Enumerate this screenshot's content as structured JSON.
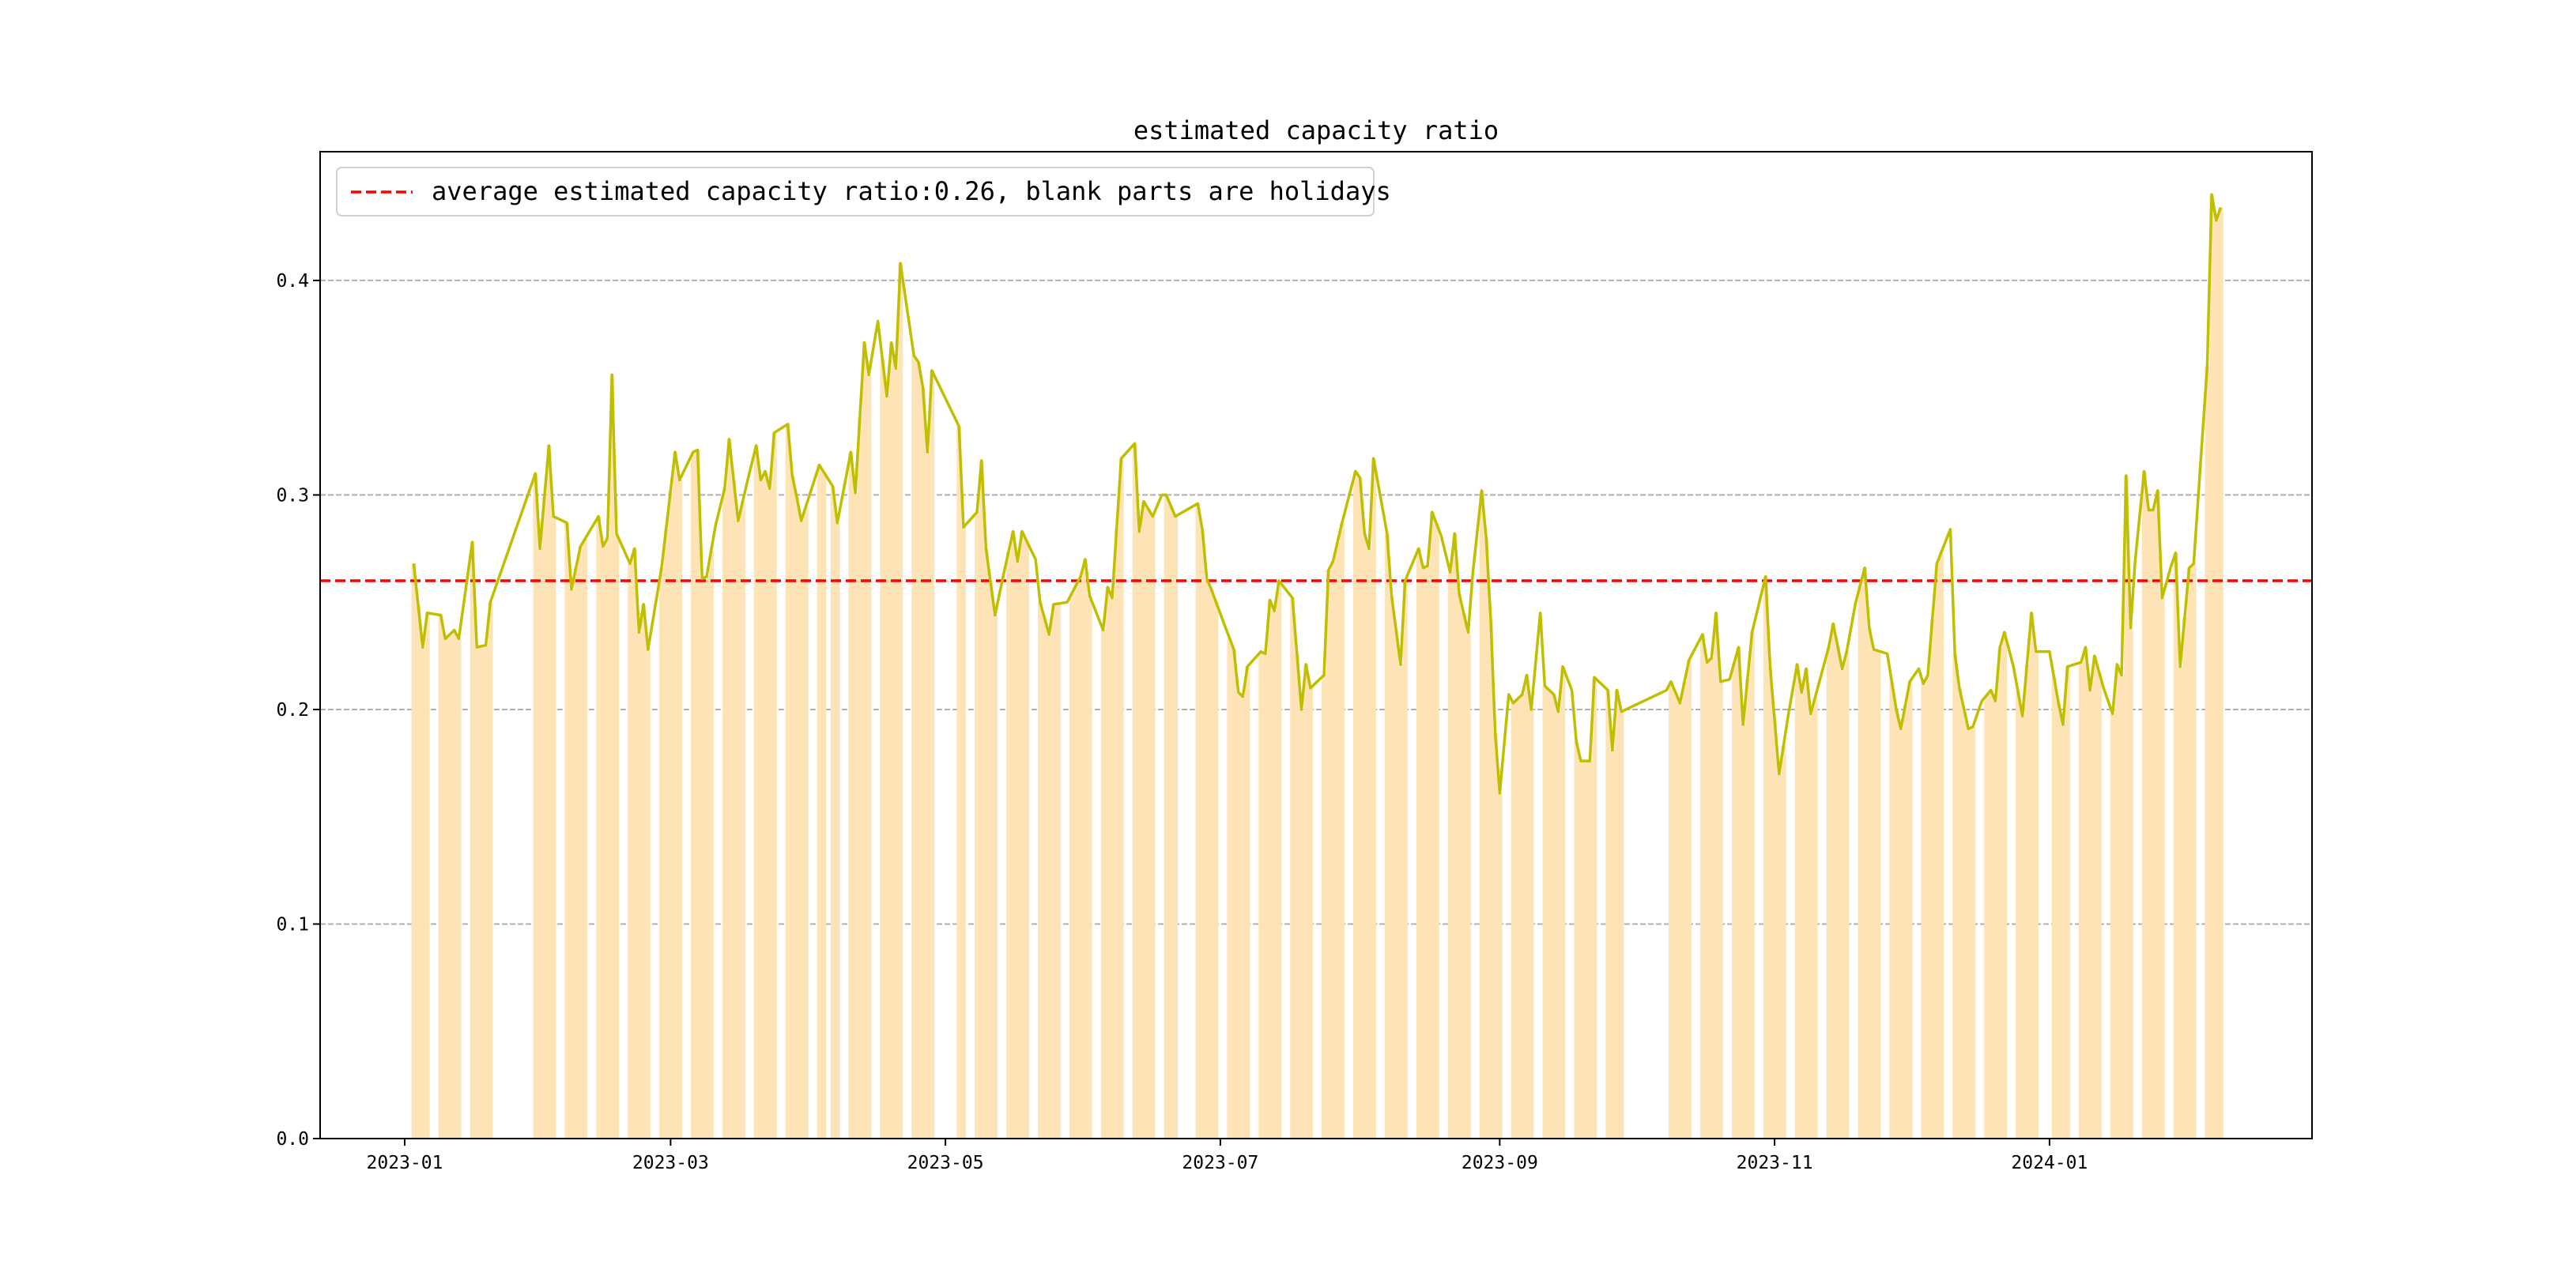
{
  "chart_data": {
    "type": "line+bar",
    "title": "estimated capacity ratio",
    "xlabel": "",
    "ylabel": "",
    "x_origin": "2023-01-01",
    "x_unit": "days since x_origin",
    "xlim_days": [
      -19,
      437
    ],
    "ylim": [
      0,
      0.46
    ],
    "yticks": [
      0.0,
      0.1,
      0.2,
      0.3,
      0.4
    ],
    "ytick_labels": [
      "0.0",
      "0.1",
      "0.2",
      "0.3",
      "0.4"
    ],
    "xticks_days": [
      0,
      59,
      120,
      181,
      243,
      304,
      365
    ],
    "xtick_labels": [
      "2023-01",
      "2023-03",
      "2023-05",
      "2023-07",
      "2023-09",
      "2023-11",
      "2024-01"
    ],
    "grid": "y dashed",
    "legend": {
      "placement": "top-left",
      "entries": [
        "average estimated capacity ratio:0.26, blank parts are holidays"
      ]
    },
    "average_line": {
      "value": 0.26,
      "color": "#ff0000",
      "style": "dashed"
    },
    "line_color": "#bfbf00",
    "bar_color": "#fde3b5",
    "holidays_days": [
      [
        20,
        28
      ],
      [
        94,
        94
      ],
      [
        118,
        122
      ],
      [
        172,
        174
      ],
      [
        271,
        279
      ],
      [
        364,
        365
      ]
    ],
    "series": [
      {
        "name": "estimated capacity ratio",
        "points": [
          [
            2,
            0.268
          ],
          [
            4,
            0.229
          ],
          [
            5,
            0.245
          ],
          [
            8,
            0.244
          ],
          [
            9,
            0.233
          ],
          [
            11,
            0.237
          ],
          [
            12,
            0.233
          ],
          [
            15,
            0.278
          ],
          [
            16,
            0.229
          ],
          [
            18,
            0.23
          ],
          [
            19,
            0.25
          ],
          [
            29,
            0.31
          ],
          [
            30,
            0.275
          ],
          [
            32,
            0.323
          ],
          [
            33,
            0.29
          ],
          [
            36,
            0.287
          ],
          [
            37,
            0.256
          ],
          [
            39,
            0.276
          ],
          [
            43,
            0.29
          ],
          [
            44,
            0.276
          ],
          [
            45,
            0.28
          ],
          [
            46,
            0.356
          ],
          [
            47,
            0.282
          ],
          [
            50,
            0.268
          ],
          [
            51,
            0.275
          ],
          [
            52,
            0.236
          ],
          [
            53,
            0.249
          ],
          [
            54,
            0.228
          ],
          [
            57,
            0.266
          ],
          [
            58,
            0.284
          ],
          [
            60,
            0.32
          ],
          [
            61,
            0.307
          ],
          [
            64,
            0.32
          ],
          [
            65,
            0.321
          ],
          [
            66,
            0.261
          ],
          [
            67,
            0.262
          ],
          [
            69,
            0.286
          ],
          [
            71,
            0.303
          ],
          [
            72,
            0.326
          ],
          [
            74,
            0.288
          ],
          [
            76,
            0.306
          ],
          [
            78,
            0.323
          ],
          [
            79,
            0.307
          ],
          [
            80,
            0.311
          ],
          [
            81,
            0.303
          ],
          [
            82,
            0.329
          ],
          [
            85,
            0.333
          ],
          [
            86,
            0.309
          ],
          [
            87,
            0.299
          ],
          [
            88,
            0.288
          ],
          [
            92,
            0.314
          ],
          [
            95,
            0.304
          ],
          [
            96,
            0.287
          ],
          [
            99,
            0.32
          ],
          [
            100,
            0.301
          ],
          [
            102,
            0.371
          ],
          [
            103,
            0.356
          ],
          [
            105,
            0.381
          ],
          [
            107,
            0.346
          ],
          [
            108,
            0.371
          ],
          [
            109,
            0.359
          ],
          [
            110,
            0.408
          ],
          [
            113,
            0.365
          ],
          [
            114,
            0.362
          ],
          [
            115,
            0.35
          ],
          [
            116,
            0.32
          ],
          [
            117,
            0.358
          ],
          [
            123,
            0.332
          ],
          [
            124,
            0.285
          ],
          [
            127,
            0.292
          ],
          [
            128,
            0.316
          ],
          [
            129,
            0.275
          ],
          [
            131,
            0.244
          ],
          [
            133,
            0.264
          ],
          [
            135,
            0.283
          ],
          [
            136,
            0.269
          ],
          [
            137,
            0.283
          ],
          [
            140,
            0.27
          ],
          [
            141,
            0.25
          ],
          [
            143,
            0.235
          ],
          [
            144,
            0.249
          ],
          [
            147,
            0.25
          ],
          [
            150,
            0.262
          ],
          [
            151,
            0.27
          ],
          [
            152,
            0.253
          ],
          [
            155,
            0.237
          ],
          [
            156,
            0.257
          ],
          [
            157,
            0.252
          ],
          [
            159,
            0.317
          ],
          [
            162,
            0.324
          ],
          [
            163,
            0.283
          ],
          [
            164,
            0.297
          ],
          [
            166,
            0.29
          ],
          [
            168,
            0.3
          ],
          [
            169,
            0.3
          ],
          [
            171,
            0.29
          ],
          [
            176,
            0.296
          ],
          [
            177,
            0.284
          ],
          [
            178,
            0.261
          ],
          [
            179,
            0.256
          ],
          [
            182,
            0.239
          ],
          [
            184,
            0.228
          ],
          [
            185,
            0.208
          ],
          [
            186,
            0.206
          ],
          [
            187,
            0.22
          ],
          [
            190,
            0.227
          ],
          [
            191,
            0.226
          ],
          [
            192,
            0.251
          ],
          [
            193,
            0.246
          ],
          [
            194,
            0.26
          ],
          [
            197,
            0.252
          ],
          [
            199,
            0.2
          ],
          [
            200,
            0.221
          ],
          [
            201,
            0.21
          ],
          [
            204,
            0.216
          ],
          [
            205,
            0.265
          ],
          [
            206,
            0.269
          ],
          [
            208,
            0.287
          ],
          [
            211,
            0.311
          ],
          [
            212,
            0.308
          ],
          [
            213,
            0.282
          ],
          [
            214,
            0.275
          ],
          [
            215,
            0.317
          ],
          [
            218,
            0.282
          ],
          [
            219,
            0.253
          ],
          [
            221,
            0.221
          ],
          [
            222,
            0.26
          ],
          [
            225,
            0.275
          ],
          [
            226,
            0.266
          ],
          [
            227,
            0.267
          ],
          [
            228,
            0.292
          ],
          [
            230,
            0.281
          ],
          [
            232,
            0.264
          ],
          [
            233,
            0.282
          ],
          [
            234,
            0.254
          ],
          [
            236,
            0.236
          ],
          [
            237,
            0.263
          ],
          [
            239,
            0.302
          ],
          [
            240,
            0.28
          ],
          [
            241,
            0.242
          ],
          [
            242,
            0.189
          ],
          [
            243,
            0.161
          ],
          [
            245,
            0.207
          ],
          [
            246,
            0.203
          ],
          [
            248,
            0.207
          ],
          [
            249,
            0.216
          ],
          [
            250,
            0.2
          ],
          [
            252,
            0.245
          ],
          [
            253,
            0.211
          ],
          [
            255,
            0.207
          ],
          [
            256,
            0.199
          ],
          [
            257,
            0.22
          ],
          [
            259,
            0.209
          ],
          [
            260,
            0.185
          ],
          [
            261,
            0.176
          ],
          [
            263,
            0.176
          ],
          [
            264,
            0.215
          ],
          [
            267,
            0.209
          ],
          [
            268,
            0.181
          ],
          [
            269,
            0.209
          ],
          [
            270,
            0.199
          ],
          [
            280,
            0.209
          ],
          [
            281,
            0.213
          ],
          [
            283,
            0.203
          ],
          [
            285,
            0.223
          ],
          [
            288,
            0.235
          ],
          [
            289,
            0.222
          ],
          [
            290,
            0.224
          ],
          [
            291,
            0.245
          ],
          [
            292,
            0.213
          ],
          [
            294,
            0.214
          ],
          [
            296,
            0.229
          ],
          [
            297,
            0.193
          ],
          [
            299,
            0.236
          ],
          [
            302,
            0.262
          ],
          [
            303,
            0.22
          ],
          [
            305,
            0.17
          ],
          [
            307,
            0.197
          ],
          [
            309,
            0.221
          ],
          [
            310,
            0.208
          ],
          [
            311,
            0.219
          ],
          [
            312,
            0.198
          ],
          [
            316,
            0.229
          ],
          [
            317,
            0.24
          ],
          [
            319,
            0.219
          ],
          [
            320,
            0.227
          ],
          [
            322,
            0.25
          ],
          [
            324,
            0.266
          ],
          [
            325,
            0.238
          ],
          [
            326,
            0.228
          ],
          [
            329,
            0.226
          ],
          [
            331,
            0.2
          ],
          [
            332,
            0.191
          ],
          [
            334,
            0.213
          ],
          [
            336,
            0.219
          ],
          [
            337,
            0.212
          ],
          [
            338,
            0.216
          ],
          [
            340,
            0.268
          ],
          [
            343,
            0.284
          ],
          [
            344,
            0.226
          ],
          [
            345,
            0.21
          ],
          [
            347,
            0.191
          ],
          [
            348,
            0.192
          ],
          [
            350,
            0.204
          ],
          [
            352,
            0.209
          ],
          [
            353,
            0.204
          ],
          [
            354,
            0.229
          ],
          [
            355,
            0.236
          ],
          [
            357,
            0.22
          ],
          [
            359,
            0.197
          ],
          [
            361,
            0.245
          ],
          [
            362,
            0.227
          ],
          [
            365,
            0.227
          ],
          [
            367,
            0.203
          ],
          [
            368,
            0.193
          ],
          [
            369,
            0.22
          ],
          [
            372,
            0.222
          ],
          [
            373,
            0.229
          ],
          [
            374,
            0.209
          ],
          [
            375,
            0.225
          ],
          [
            377,
            0.21
          ],
          [
            379,
            0.198
          ],
          [
            380,
            0.221
          ],
          [
            381,
            0.216
          ],
          [
            382,
            0.309
          ],
          [
            383,
            0.238
          ],
          [
            384,
            0.269
          ],
          [
            386,
            0.311
          ],
          [
            387,
            0.293
          ],
          [
            388,
            0.293
          ],
          [
            389,
            0.302
          ],
          [
            390,
            0.252
          ],
          [
            392,
            0.267
          ],
          [
            393,
            0.273
          ],
          [
            394,
            0.22
          ],
          [
            396,
            0.266
          ],
          [
            397,
            0.268
          ],
          [
            400,
            0.36
          ],
          [
            401,
            0.44
          ],
          [
            402,
            0.428
          ],
          [
            403,
            0.434
          ]
        ]
      }
    ]
  }
}
